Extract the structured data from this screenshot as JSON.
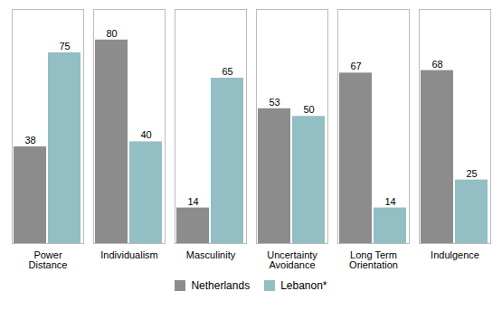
{
  "chart_data": {
    "type": "bar",
    "categories": [
      "Power\nDistance",
      "Individualism",
      "Masculinity",
      "Uncertainty\nAvoidance",
      "Long Term\nOrientation",
      "Indulgence"
    ],
    "series": [
      {
        "name": "Netherlands",
        "color": "#8C8C8C",
        "values": [
          38,
          80,
          14,
          53,
          67,
          68
        ]
      },
      {
        "name": "Lebanon*",
        "color": "#93BEC4",
        "values": [
          75,
          40,
          65,
          50,
          14,
          25
        ]
      }
    ],
    "ylim": [
      0,
      92
    ],
    "data_labels": true,
    "tick_labels": "x",
    "grid": false,
    "legend": "bottom"
  }
}
